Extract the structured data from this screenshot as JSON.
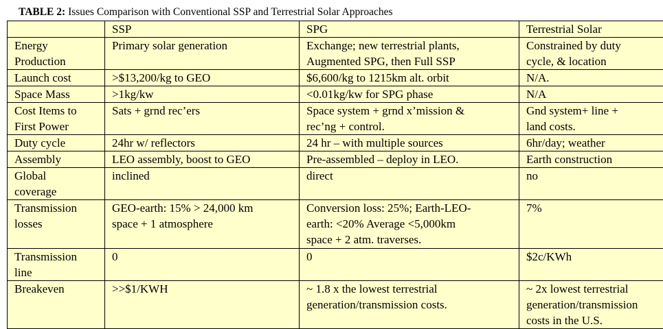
{
  "title": {
    "label": "TABLE 2:",
    "text": "Issues Comparison with Conventional SSP and Terrestrial Solar Approaches"
  },
  "table": {
    "header": [
      "SSP",
      "SPG",
      "Terrestrial Solar"
    ],
    "rows": [
      [
        [
          "Energy",
          "Production"
        ],
        [
          "Primary solar generation"
        ],
        [
          "Exchange; new terrestrial plants,",
          "Augmented SPG, then Full SSP"
        ],
        [
          "Constrained by duty",
          "cycle, & location"
        ]
      ],
      [
        [
          "Launch cost"
        ],
        [
          ">$13,200/kg to GEO"
        ],
        [
          "$6,600/kg to 1215km alt. orbit"
        ],
        [
          "N/A."
        ]
      ],
      [
        [
          "Space Mass"
        ],
        [
          ">1kg/kw"
        ],
        [
          "<0.01kg/kw for SPG phase"
        ],
        [
          "N/A"
        ]
      ],
      [
        [
          "Cost Items to",
          "First Power"
        ],
        [
          "Sats + grnd rec’ers"
        ],
        [
          "Space system + grnd x’mission &",
          "rec’ng + control."
        ],
        [
          "Gnd system+ line +",
          "land costs."
        ]
      ],
      [
        [
          "Duty cycle"
        ],
        [
          "24hr  w/ reflectors"
        ],
        [
          "24 hr – with multiple sources"
        ],
        [
          "6hr/day; weather"
        ]
      ],
      [
        [
          "Assembly"
        ],
        [
          "LEO assembly, boost to GEO"
        ],
        [
          "Pre-assembled – deploy in LEO."
        ],
        [
          "Earth construction"
        ]
      ],
      [
        [
          "Global",
          "coverage"
        ],
        [
          "inclined"
        ],
        [
          "direct"
        ],
        [
          "no"
        ]
      ],
      [
        [
          "Transmission",
          "losses"
        ],
        [
          "GEO-earth: 15% > 24,000 km",
          "space + 1 atmosphere"
        ],
        [
          "Conversion loss: 25%; Earth-LEO-",
          "earth: <20% Average <5,000km",
          "space + 2 atm. traverses."
        ],
        [
          "7%"
        ]
      ],
      [
        [
          "Transmission",
          "line"
        ],
        [
          "0"
        ],
        [
          "0"
        ],
        [
          "$2c/KWh"
        ]
      ],
      [
        [
          "Breakeven"
        ],
        [
          ">>$1/KWH"
        ],
        [
          "~ 1.8 x the lowest terrestrial",
          "generation/transmission costs."
        ],
        [
          "~ 2x lowest terrestrial",
          "generation/transmission",
          "costs in the U.S."
        ]
      ]
    ]
  }
}
